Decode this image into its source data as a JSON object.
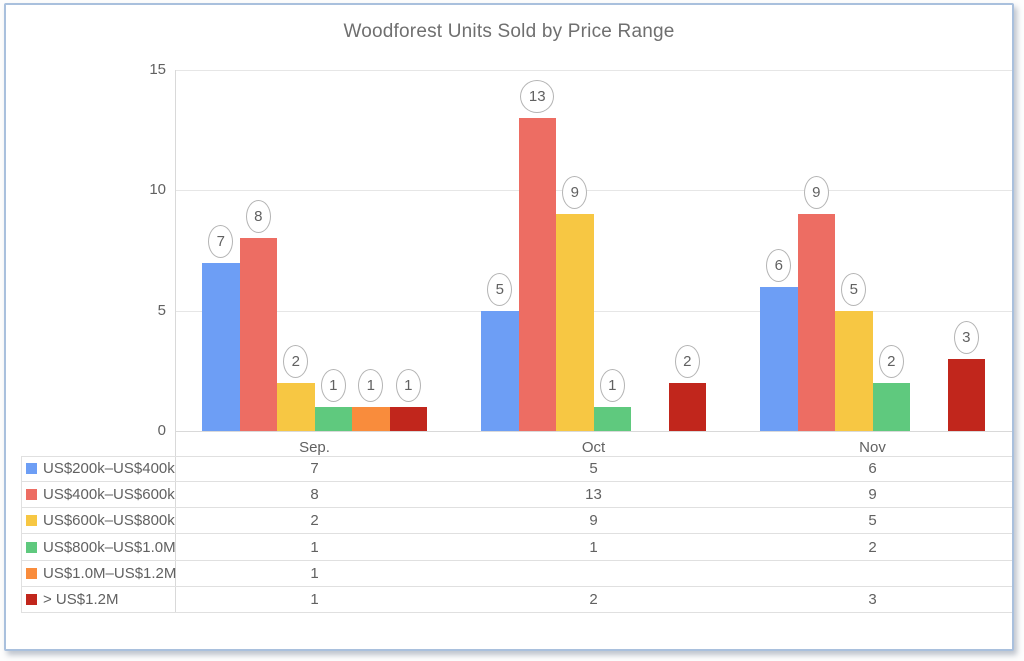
{
  "panel": {
    "background": "#ffffff",
    "border_color": "#a9c0dd"
  },
  "chart_data": {
    "type": "bar",
    "title": "Woodforest Units Sold by Price Range",
    "title_color": "#6f6f6f",
    "categories": [
      "Sep.",
      "Oct",
      "Nov"
    ],
    "series": [
      {
        "name": "US$200k–US$400k",
        "color": "#6D9EF5",
        "values": [
          7,
          5,
          6
        ]
      },
      {
        "name": "US$400k–US$600k",
        "color": "#ED6D63",
        "values": [
          8,
          13,
          9
        ]
      },
      {
        "name": "US$600k–US$800k",
        "color": "#F7C743",
        "values": [
          2,
          9,
          5
        ]
      },
      {
        "name": "US$800k–US$1.0M",
        "color": "#5FC97E",
        "values": [
          1,
          1,
          2
        ]
      },
      {
        "name": "US$1.0M–US$1.2M",
        "color": "#F98C3C",
        "values": [
          1,
          null,
          null
        ]
      },
      {
        "name": "> US$1.2M",
        "color": "#C1261C",
        "values": [
          1,
          2,
          3
        ]
      }
    ],
    "xlabel": "",
    "ylabel": "",
    "ylim": [
      0,
      15
    ],
    "yticks": [
      0,
      5,
      10,
      15
    ],
    "grid": true,
    "legend_position": "data-table-left-column",
    "data_labels": "value in white circled bubble above each bar",
    "table": {
      "rows": [
        {
          "label": "US$200k–US$400k",
          "values": [
            "7",
            "5",
            "6"
          ]
        },
        {
          "label": "US$400k–US$600k",
          "values": [
            "8",
            "13",
            "9"
          ]
        },
        {
          "label": "US$600k–US$800k",
          "values": [
            "2",
            "9",
            "5"
          ]
        },
        {
          "label": "US$800k–US$1.0M",
          "values": [
            "1",
            "1",
            "2"
          ]
        },
        {
          "label": "US$1.0M–US$1.2M",
          "values": [
            "1",
            "",
            ""
          ]
        },
        {
          "label": "> US$1.2M",
          "values": [
            "1",
            "2",
            "3"
          ]
        }
      ]
    }
  }
}
